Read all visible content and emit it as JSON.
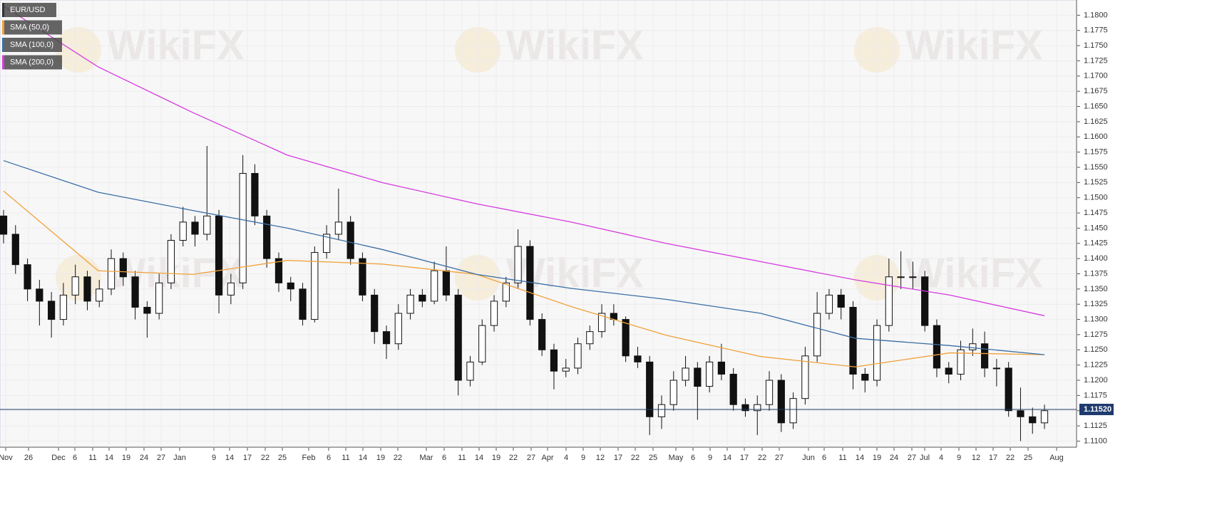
{
  "chart_data": {
    "type": "candlestick",
    "symbol": "EUR/USD",
    "watermark": "WikiFX",
    "last_price": 1.1152,
    "last_price_label": "1.11520",
    "ylim": [
      1.109,
      1.1825
    ],
    "yticks": [
      {
        "value": 1.11,
        "label": "1.1100"
      },
      {
        "value": 1.1125,
        "label": "1.1125"
      },
      {
        "value": 1.115,
        "label": "1.1150"
      },
      {
        "value": 1.1175,
        "label": "1.1175"
      },
      {
        "value": 1.12,
        "label": "1.1200"
      },
      {
        "value": 1.1225,
        "label": "1.1225"
      },
      {
        "value": 1.125,
        "label": "1.1250"
      },
      {
        "value": 1.1275,
        "label": "1.1275"
      },
      {
        "value": 1.13,
        "label": "1.1300"
      },
      {
        "value": 1.1325,
        "label": "1.1325"
      },
      {
        "value": 1.135,
        "label": "1.1350"
      },
      {
        "value": 1.1375,
        "label": "1.1375"
      },
      {
        "value": 1.14,
        "label": "1.1400"
      },
      {
        "value": 1.1425,
        "label": "1.1425"
      },
      {
        "value": 1.145,
        "label": "1.1450"
      },
      {
        "value": 1.1475,
        "label": "1.1475"
      },
      {
        "value": 1.15,
        "label": "1.1500"
      },
      {
        "value": 1.1525,
        "label": "1.1525"
      },
      {
        "value": 1.155,
        "label": "1.1550"
      },
      {
        "value": 1.1575,
        "label": "1.1575"
      },
      {
        "value": 1.16,
        "label": "1.1600"
      },
      {
        "value": 1.1625,
        "label": "1.1625"
      },
      {
        "value": 1.165,
        "label": "1.1650"
      },
      {
        "value": 1.1675,
        "label": "1.1675"
      },
      {
        "value": 1.17,
        "label": "1.1700"
      },
      {
        "value": 1.1725,
        "label": "1.1725"
      },
      {
        "value": 1.175,
        "label": "1.1750"
      },
      {
        "value": 1.1775,
        "label": "1.1775"
      },
      {
        "value": 1.18,
        "label": "1.1800"
      }
    ],
    "x_labels": [
      "Nov",
      "26",
      "Dec",
      "6",
      "11",
      "14",
      "19",
      "24",
      "27",
      "Jan",
      "9",
      "14",
      "17",
      "22",
      "25",
      "Feb",
      "6",
      "11",
      "14",
      "19",
      "22",
      "Mar",
      "6",
      "11",
      "14",
      "19",
      "22",
      "27",
      "Apr",
      "4",
      "9",
      "12",
      "17",
      "22",
      "25",
      "May",
      "6",
      "9",
      "14",
      "17",
      "22",
      "27",
      "Jun",
      "6",
      "11",
      "14",
      "19",
      "24",
      "27",
      "Jul",
      "4",
      "9",
      "12",
      "17",
      "22",
      "25",
      "Aug"
    ],
    "candles": [
      [
        1.147,
        1.148,
        1.1425,
        1.144
      ],
      [
        1.144,
        1.1455,
        1.1375,
        1.139
      ],
      [
        1.139,
        1.14,
        1.133,
        1.135
      ],
      [
        1.135,
        1.1365,
        1.129,
        1.133
      ],
      [
        1.133,
        1.1345,
        1.127,
        1.13
      ],
      [
        1.13,
        1.136,
        1.129,
        1.134
      ],
      [
        1.134,
        1.139,
        1.1325,
        1.137
      ],
      [
        1.137,
        1.138,
        1.1315,
        1.133
      ],
      [
        1.133,
        1.1365,
        1.132,
        1.135
      ],
      [
        1.135,
        1.1415,
        1.134,
        1.14
      ],
      [
        1.14,
        1.141,
        1.1355,
        1.137
      ],
      [
        1.137,
        1.138,
        1.13,
        1.132
      ],
      [
        1.132,
        1.133,
        1.127,
        1.131
      ],
      [
        1.131,
        1.1375,
        1.13,
        1.136
      ],
      [
        1.136,
        1.144,
        1.135,
        1.143
      ],
      [
        1.143,
        1.1485,
        1.142,
        1.146
      ],
      [
        1.146,
        1.147,
        1.142,
        1.144
      ],
      [
        1.144,
        1.1585,
        1.143,
        1.147
      ],
      [
        1.147,
        1.148,
        1.131,
        1.134
      ],
      [
        1.134,
        1.1375,
        1.1325,
        1.136
      ],
      [
        1.136,
        1.157,
        1.135,
        1.154
      ],
      [
        1.154,
        1.1555,
        1.1455,
        1.147
      ],
      [
        1.147,
        1.148,
        1.1385,
        1.14
      ],
      [
        1.14,
        1.141,
        1.1345,
        1.136
      ],
      [
        1.136,
        1.137,
        1.133,
        1.135
      ],
      [
        1.135,
        1.136,
        1.129,
        1.13
      ],
      [
        1.13,
        1.142,
        1.1295,
        1.141
      ],
      [
        1.141,
        1.1455,
        1.14,
        1.144
      ],
      [
        1.144,
        1.1515,
        1.143,
        1.146
      ],
      [
        1.146,
        1.147,
        1.139,
        1.14
      ],
      [
        1.14,
        1.141,
        1.133,
        1.134
      ],
      [
        1.134,
        1.135,
        1.126,
        1.128
      ],
      [
        1.128,
        1.129,
        1.1235,
        1.126
      ],
      [
        1.126,
        1.1325,
        1.125,
        1.131
      ],
      [
        1.131,
        1.135,
        1.13,
        1.134
      ],
      [
        1.134,
        1.135,
        1.132,
        1.133
      ],
      [
        1.133,
        1.1395,
        1.1325,
        1.138
      ],
      [
        1.138,
        1.142,
        1.133,
        1.134
      ],
      [
        1.134,
        1.135,
        1.1175,
        1.12
      ],
      [
        1.12,
        1.124,
        1.119,
        1.123
      ],
      [
        1.123,
        1.13,
        1.1225,
        1.129
      ],
      [
        1.129,
        1.134,
        1.128,
        1.133
      ],
      [
        1.133,
        1.137,
        1.132,
        1.136
      ],
      [
        1.136,
        1.1448,
        1.135,
        1.142
      ],
      [
        1.142,
        1.143,
        1.129,
        1.13
      ],
      [
        1.13,
        1.131,
        1.124,
        1.125
      ],
      [
        1.125,
        1.126,
        1.1185,
        1.1215
      ],
      [
        1.1215,
        1.1235,
        1.1205,
        1.122
      ],
      [
        1.122,
        1.127,
        1.121,
        1.126
      ],
      [
        1.126,
        1.129,
        1.125,
        1.128
      ],
      [
        1.128,
        1.1325,
        1.127,
        1.131
      ],
      [
        1.131,
        1.1325,
        1.129,
        1.13
      ],
      [
        1.13,
        1.1305,
        1.123,
        1.124
      ],
      [
        1.124,
        1.1255,
        1.122,
        1.123
      ],
      [
        1.123,
        1.124,
        1.111,
        1.114
      ],
      [
        1.114,
        1.1175,
        1.112,
        1.116
      ],
      [
        1.116,
        1.1215,
        1.115,
        1.12
      ],
      [
        1.12,
        1.124,
        1.119,
        1.122
      ],
      [
        1.122,
        1.123,
        1.1135,
        1.119
      ],
      [
        1.119,
        1.124,
        1.118,
        1.123
      ],
      [
        1.123,
        1.126,
        1.12,
        1.121
      ],
      [
        1.121,
        1.122,
        1.115,
        1.116
      ],
      [
        1.116,
        1.117,
        1.114,
        1.115
      ],
      [
        1.115,
        1.1175,
        1.111,
        1.116
      ],
      [
        1.116,
        1.1215,
        1.115,
        1.12
      ],
      [
        1.12,
        1.121,
        1.1115,
        1.113
      ],
      [
        1.113,
        1.118,
        1.112,
        1.117
      ],
      [
        1.117,
        1.1255,
        1.116,
        1.124
      ],
      [
        1.124,
        1.1345,
        1.123,
        1.131
      ],
      [
        1.131,
        1.135,
        1.13,
        1.134
      ],
      [
        1.134,
        1.135,
        1.13,
        1.132
      ],
      [
        1.132,
        1.133,
        1.1185,
        1.121
      ],
      [
        1.121,
        1.122,
        1.118,
        1.12
      ],
      [
        1.12,
        1.13,
        1.119,
        1.129
      ],
      [
        1.129,
        1.14,
        1.128,
        1.137
      ],
      [
        1.137,
        1.1412,
        1.135,
        1.137
      ],
      [
        1.137,
        1.1395,
        1.135,
        1.137
      ],
      [
        1.137,
        1.138,
        1.128,
        1.129
      ],
      [
        1.129,
        1.13,
        1.1205,
        1.122
      ],
      [
        1.122,
        1.123,
        1.1195,
        1.121
      ],
      [
        1.121,
        1.1265,
        1.12,
        1.125
      ],
      [
        1.125,
        1.1285,
        1.124,
        1.126
      ],
      [
        1.126,
        1.128,
        1.1205,
        1.122
      ],
      [
        1.122,
        1.1235,
        1.119,
        1.122
      ],
      [
        1.122,
        1.123,
        1.114,
        1.115
      ],
      [
        1.115,
        1.1188,
        1.11,
        1.114
      ],
      [
        1.114,
        1.1155,
        1.1112,
        1.113
      ],
      [
        1.113,
        1.116,
        1.112,
        1.115
      ]
    ],
    "series": [
      {
        "name": "SMA (50,0)",
        "color": "#f0a23c",
        "values": [
          1.1511,
          1.138,
          1.1374,
          1.1397,
          1.1391,
          1.1374,
          1.1321,
          1.1274,
          1.1239,
          1.1222,
          1.1245,
          1.1242
        ]
      },
      {
        "name": "SMA (100,0)",
        "color": "#3a6ea5",
        "values": [
          1.1561,
          1.1509,
          1.1479,
          1.145,
          1.1415,
          1.1374,
          1.1351,
          1.1333,
          1.131,
          1.1269,
          1.1257,
          1.1242
        ]
      },
      {
        "name": "SMA (200,0)",
        "color": "#d63adf",
        "values": [
          1.1815,
          1.1715,
          1.164,
          1.157,
          1.1525,
          1.149,
          1.146,
          1.1425,
          1.1395,
          1.1365,
          1.134,
          1.1306
        ]
      }
    ]
  }
}
